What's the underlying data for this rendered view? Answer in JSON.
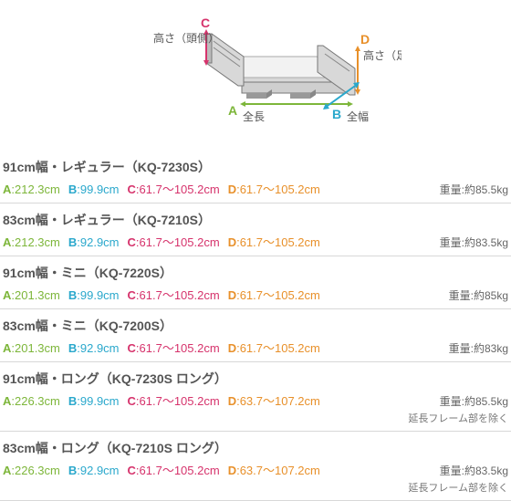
{
  "colors": {
    "A": "#7db63a",
    "B": "#2aa8cc",
    "C": "#d6336c",
    "D": "#e8902a",
    "line": "#777",
    "fill": "#e6e6e6",
    "fillDark": "#cfcfcf",
    "foot": "#999"
  },
  "diagram": {
    "C": {
      "letter": "C",
      "label": "高さ（頭側）"
    },
    "D": {
      "letter": "D",
      "label": "高さ（足側）"
    },
    "A": {
      "letter": "A",
      "label": "全長"
    },
    "B": {
      "letter": "B",
      "label": "全幅"
    }
  },
  "models": [
    {
      "title": "91cm幅・レギュラー（KQ-7230S）",
      "A": "212.3cm",
      "B": "99.9cm",
      "C": "61.7〜105.2cm",
      "D": "61.7〜105.2cm",
      "weight": "重量:約85.5kg",
      "note": ""
    },
    {
      "title": "83cm幅・レギュラー（KQ-7210S）",
      "A": "212.3cm",
      "B": "92.9cm",
      "C": "61.7〜105.2cm",
      "D": "61.7〜105.2cm",
      "weight": "重量:約83.5kg",
      "note": ""
    },
    {
      "title": "91cm幅・ミニ（KQ-7220S）",
      "A": "201.3cm",
      "B": "99.9cm",
      "C": "61.7〜105.2cm",
      "D": "61.7〜105.2cm",
      "weight": "重量:約85kg",
      "note": ""
    },
    {
      "title": "83cm幅・ミニ（KQ-7200S）",
      "A": "201.3cm",
      "B": "92.9cm",
      "C": "61.7〜105.2cm",
      "D": "61.7〜105.2cm",
      "weight": "重量:約83kg",
      "note": ""
    },
    {
      "title": "91cm幅・ロング（KQ-7230S ロング）",
      "A": "226.3cm",
      "B": "99.9cm",
      "C": "61.7〜105.2cm",
      "D": "63.7〜107.2cm",
      "weight": "重量:約85.5kg",
      "note": "延長フレーム部を除く"
    },
    {
      "title": "83cm幅・ロング（KQ-7210S ロング）",
      "A": "226.3cm",
      "B": "92.9cm",
      "C": "61.7〜105.2cm",
      "D": "63.7〜107.2cm",
      "weight": "重量:約83.5kg",
      "note": "延長フレーム部を除く"
    }
  ]
}
